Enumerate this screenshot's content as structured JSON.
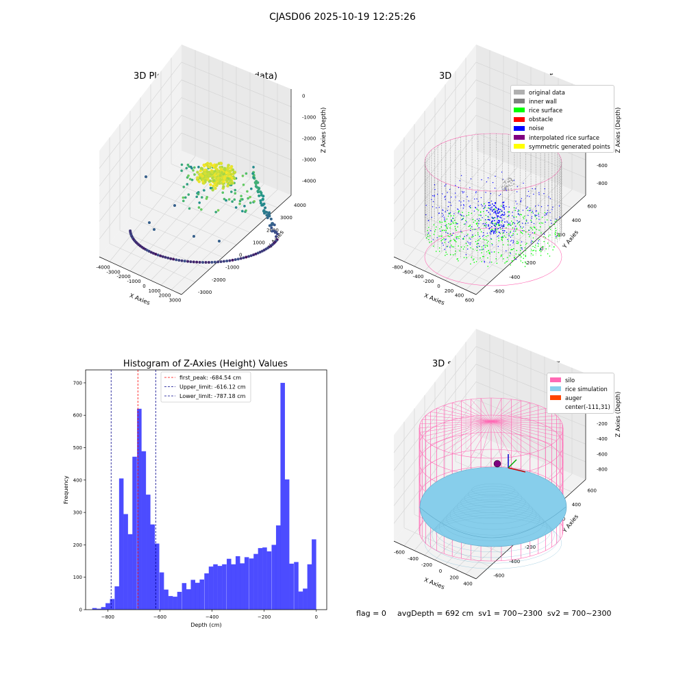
{
  "suptitle": "CJASD06 2025-10-19 12:25:26",
  "footer": {
    "flag": "flag = 0",
    "stats": "avgDepth = 692 cm  sv1 = 700~2300  sv2 = 700~2300"
  },
  "colors": {
    "pane": "#f2f2f2",
    "pane_side": "#e9e9e9",
    "grid": "#d2d2d2",
    "histogram_bar": "#0000ff",
    "first_peak_line": "#ff0000",
    "limit_lines": "#00008b",
    "silo_wire": "#ff69b4",
    "rice_surface": "#87ceeb"
  },
  "panels": {
    "raw": {
      "title": "3D Plot of Silo Interior(row data)",
      "xlabel": "X Axies",
      "ylabel": "Y Axies",
      "zlabel": "Z Axies (Depth)",
      "xticks": [
        "-4000",
        "-3000",
        "-2000",
        "-1000",
        "0",
        "1000",
        "2000",
        "3000"
      ],
      "yticks": [
        "-3000",
        "-2000",
        "-1000",
        "0",
        "1000",
        "2000",
        "3000",
        "4000"
      ],
      "zticks": [
        "0",
        "-1000",
        "-2000",
        "-3000",
        "-4000"
      ],
      "colormap": "viridis"
    },
    "classify": {
      "title": "3D classify of Silo Interior",
      "xlabel": "X Axies",
      "ylabel": "Y Axies",
      "zlabel": "Z Axies (Depth)",
      "xticks": [
        "-800",
        "-600",
        "-400",
        "-200",
        "0",
        "200",
        "400",
        "600"
      ],
      "yticks": [
        "-600",
        "-400",
        "-200",
        "0",
        "200",
        "400",
        "600"
      ],
      "zticks": [
        "200",
        "0",
        "-200",
        "-400",
        "-600",
        "-800"
      ],
      "legend": [
        {
          "label": "original data",
          "color": "#b0b0b0"
        },
        {
          "label": "inner wall",
          "color": "#808080"
        },
        {
          "label": "rice surface",
          "color": "#00ff00"
        },
        {
          "label": "obstacle",
          "color": "#ff0000"
        },
        {
          "label": "noise",
          "color": "#0000ff"
        },
        {
          "label": "interpolated rice surface",
          "color": "#800080"
        },
        {
          "label": "symmetric generated points",
          "color": "#ffff00"
        }
      ]
    },
    "simulation": {
      "title": "3D simulation of Silo Interior",
      "xlabel": "X Axies",
      "ylabel": "Y Axies",
      "zlabel": "Z Axies (Depth)",
      "xticks": [
        "-600",
        "-400",
        "-200",
        "0",
        "200",
        "400"
      ],
      "yticks": [
        "-600",
        "-400",
        "-200",
        "0",
        "200",
        "400",
        "600"
      ],
      "zticks": [
        "400",
        "200",
        "0",
        "-200",
        "-400",
        "-600",
        "-800"
      ],
      "legend": [
        {
          "label": "silo",
          "color": "#ff69b4"
        },
        {
          "label": "rice simulation",
          "color": "#87ceeb"
        },
        {
          "label": "auger",
          "color": "#ff4500"
        },
        {
          "label": "center(-111,31)",
          "color": ""
        }
      ]
    }
  },
  "chart_data": {
    "type": "bar",
    "title": "Histogram of Z-Axies (Height) Values",
    "xlabel": "Depth (cm)",
    "ylabel": "Frequency",
    "xlim": [
      -885,
      40
    ],
    "ylim": [
      0,
      740
    ],
    "xticks": [
      -800,
      -600,
      -400,
      -200,
      0
    ],
    "yticks": [
      0,
      100,
      200,
      300,
      400,
      500,
      600,
      700
    ],
    "bin_width": 17.2,
    "bins": [
      {
        "x": -851,
        "count": 5
      },
      {
        "x": -834,
        "count": 3
      },
      {
        "x": -817,
        "count": 8
      },
      {
        "x": -800,
        "count": 20
      },
      {
        "x": -783,
        "count": 33
      },
      {
        "x": -765,
        "count": 72
      },
      {
        "x": -748,
        "count": 405
      },
      {
        "x": -731,
        "count": 295
      },
      {
        "x": -714,
        "count": 233
      },
      {
        "x": -697,
        "count": 472
      },
      {
        "x": -679,
        "count": 620
      },
      {
        "x": -662,
        "count": 489
      },
      {
        "x": -645,
        "count": 355
      },
      {
        "x": -628,
        "count": 263
      },
      {
        "x": -611,
        "count": 204
      },
      {
        "x": -593,
        "count": 115
      },
      {
        "x": -576,
        "count": 62
      },
      {
        "x": -559,
        "count": 42
      },
      {
        "x": -542,
        "count": 40
      },
      {
        "x": -525,
        "count": 55
      },
      {
        "x": -507,
        "count": 82
      },
      {
        "x": -490,
        "count": 63
      },
      {
        "x": -473,
        "count": 92
      },
      {
        "x": -456,
        "count": 83
      },
      {
        "x": -439,
        "count": 93
      },
      {
        "x": -421,
        "count": 112
      },
      {
        "x": -404,
        "count": 133
      },
      {
        "x": -387,
        "count": 140
      },
      {
        "x": -370,
        "count": 135
      },
      {
        "x": -353,
        "count": 140
      },
      {
        "x": -335,
        "count": 157
      },
      {
        "x": -318,
        "count": 140
      },
      {
        "x": -301,
        "count": 165
      },
      {
        "x": -284,
        "count": 143
      },
      {
        "x": -267,
        "count": 162
      },
      {
        "x": -249,
        "count": 158
      },
      {
        "x": -232,
        "count": 172
      },
      {
        "x": -215,
        "count": 190
      },
      {
        "x": -198,
        "count": 192
      },
      {
        "x": -181,
        "count": 180
      },
      {
        "x": -163,
        "count": 200
      },
      {
        "x": -146,
        "count": 260
      },
      {
        "x": -129,
        "count": 700
      },
      {
        "x": -112,
        "count": 402
      },
      {
        "x": -95,
        "count": 142
      },
      {
        "x": -77,
        "count": 147
      },
      {
        "x": -60,
        "count": 56
      },
      {
        "x": -43,
        "count": 65
      },
      {
        "x": -26,
        "count": 140
      },
      {
        "x": -9,
        "count": 217
      }
    ],
    "vlines": [
      {
        "label": "first_peak: -684.54 cm",
        "x": -684.54,
        "color": "#ff0000"
      },
      {
        "label": "Upper_limit: -616.12 cm",
        "x": -616.12,
        "color": "#00008b"
      },
      {
        "label": "Lower_limit: -787.18 cm",
        "x": -787.18,
        "color": "#00008b"
      }
    ],
    "legend_position": "upper-center"
  }
}
